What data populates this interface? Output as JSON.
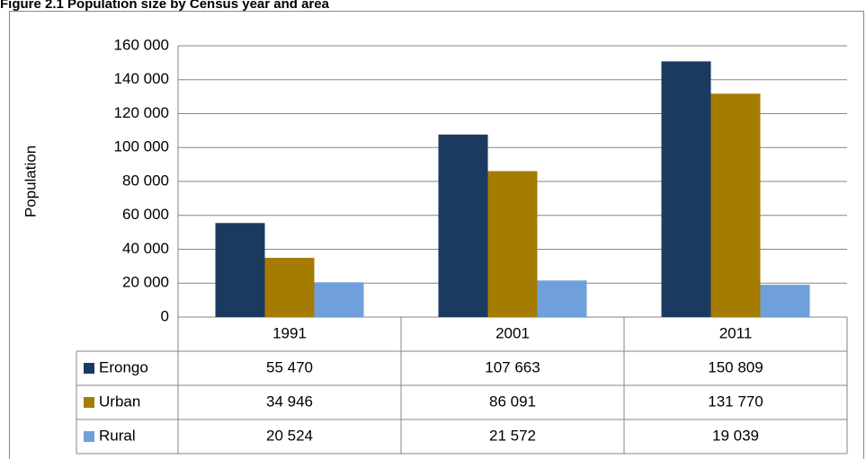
{
  "chart_data": {
    "type": "bar",
    "title": "Figure 2.1 Population size by Census year and area",
    "y_label": "Population",
    "categories": [
      "1991",
      "2001",
      "2011"
    ],
    "series": [
      {
        "name": "Erongo",
        "color": "#1b3a5f",
        "values": [
          55470,
          107663,
          150809
        ],
        "value_labels": [
          "55 470",
          "107 663",
          "150 809"
        ]
      },
      {
        "name": "Urban",
        "color": "#a67c00",
        "values": [
          34946,
          86091,
          131770
        ],
        "value_labels": [
          "34 946",
          "86 091",
          "131 770"
        ]
      },
      {
        "name": "Rural",
        "color": "#6fa0dc",
        "values": [
          20524,
          21572,
          19039
        ],
        "value_labels": [
          "20 524",
          "21 572",
          "19 039"
        ]
      }
    ],
    "ylim": [
      0,
      160000
    ],
    "yticks": [
      0,
      {
        "value": 20000,
        "label": "20 000"
      },
      {
        "value": 40000,
        "label": "40 000"
      },
      {
        "value": 60000,
        "label": "60 000"
      },
      {
        "value": 80000,
        "label": "80 000"
      },
      {
        "value": 100000,
        "label": "100 000"
      },
      {
        "value": 120000,
        "label": "120 000"
      },
      {
        "value": 140000,
        "label": "140 000"
      },
      {
        "value": 160000,
        "label": "160 000"
      }
    ],
    "grid": true
  }
}
